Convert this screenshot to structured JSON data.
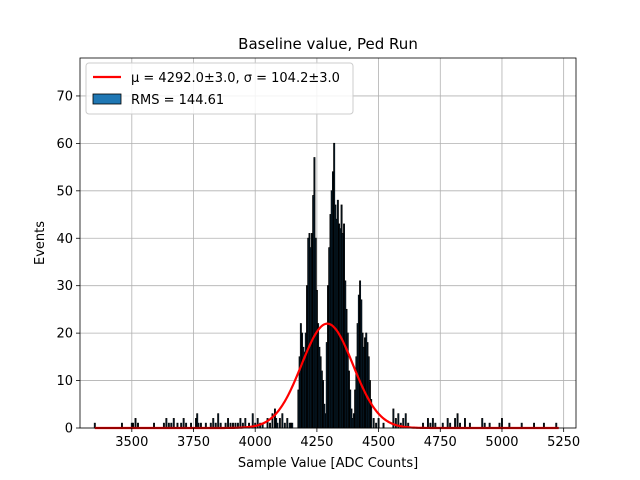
{
  "chart_data": {
    "type": "bar",
    "title": "Baseline value, Ped Run",
    "xlabel": "Sample Value [ADC Counts]",
    "ylabel": "Events",
    "xlim": [
      3290,
      5300
    ],
    "ylim": [
      0,
      78
    ],
    "xticks": [
      3500,
      3750,
      4000,
      4250,
      4500,
      4750,
      5000,
      5250
    ],
    "yticks": [
      0,
      10,
      20,
      30,
      40,
      50,
      60,
      70
    ],
    "grid": true,
    "legend_position": "upper-left",
    "legend": [
      {
        "label": "μ = 4292.0±3.0, σ = 104.2±3.0",
        "kind": "line",
        "color": "#ff0000"
      },
      {
        "label": "RMS = 144.61",
        "kind": "patch",
        "color": "#1f77b4"
      }
    ],
    "fit": {
      "mu": 4292.0,
      "sigma": 104.2,
      "amplitude": 22,
      "x_range": [
        3350,
        5230
      ],
      "color": "#ff0000"
    },
    "histogram": {
      "bar_color": "#1f77b4",
      "edge_color": "#000000",
      "bins": [
        {
          "x": 3350,
          "count": 1
        },
        {
          "x": 3460,
          "count": 1
        },
        {
          "x": 3500,
          "count": 1
        },
        {
          "x": 3505,
          "count": 1
        },
        {
          "x": 3515,
          "count": 2
        },
        {
          "x": 3525,
          "count": 1
        },
        {
          "x": 3590,
          "count": 1
        },
        {
          "x": 3630,
          "count": 1
        },
        {
          "x": 3640,
          "count": 2
        },
        {
          "x": 3650,
          "count": 1
        },
        {
          "x": 3660,
          "count": 1
        },
        {
          "x": 3670,
          "count": 2
        },
        {
          "x": 3685,
          "count": 1
        },
        {
          "x": 3700,
          "count": 1
        },
        {
          "x": 3710,
          "count": 2
        },
        {
          "x": 3720,
          "count": 1
        },
        {
          "x": 3740,
          "count": 1
        },
        {
          "x": 3760,
          "count": 2
        },
        {
          "x": 3765,
          "count": 3
        },
        {
          "x": 3770,
          "count": 1
        },
        {
          "x": 3780,
          "count": 1
        },
        {
          "x": 3800,
          "count": 1
        },
        {
          "x": 3820,
          "count": 1
        },
        {
          "x": 3830,
          "count": 2
        },
        {
          "x": 3840,
          "count": 1
        },
        {
          "x": 3850,
          "count": 3
        },
        {
          "x": 3860,
          "count": 1
        },
        {
          "x": 3880,
          "count": 1
        },
        {
          "x": 3890,
          "count": 2
        },
        {
          "x": 3900,
          "count": 1
        },
        {
          "x": 3910,
          "count": 1
        },
        {
          "x": 3920,
          "count": 1
        },
        {
          "x": 3930,
          "count": 1
        },
        {
          "x": 3940,
          "count": 2
        },
        {
          "x": 3950,
          "count": 1
        },
        {
          "x": 3960,
          "count": 2
        },
        {
          "x": 3975,
          "count": 1
        },
        {
          "x": 3990,
          "count": 3
        },
        {
          "x": 4000,
          "count": 1
        },
        {
          "x": 4010,
          "count": 2
        },
        {
          "x": 4020,
          "count": 1
        },
        {
          "x": 4030,
          "count": 1
        },
        {
          "x": 4050,
          "count": 2
        },
        {
          "x": 4060,
          "count": 1
        },
        {
          "x": 4070,
          "count": 3
        },
        {
          "x": 4080,
          "count": 4
        },
        {
          "x": 4085,
          "count": 2
        },
        {
          "x": 4090,
          "count": 1
        },
        {
          "x": 4100,
          "count": 2
        },
        {
          "x": 4110,
          "count": 3
        },
        {
          "x": 4120,
          "count": 1
        },
        {
          "x": 4130,
          "count": 2
        },
        {
          "x": 4140,
          "count": 1
        },
        {
          "x": 4145,
          "count": 1
        },
        {
          "x": 4150,
          "count": 1
        },
        {
          "x": 4175,
          "count": 8
        },
        {
          "x": 4180,
          "count": 15
        },
        {
          "x": 4185,
          "count": 22
        },
        {
          "x": 4190,
          "count": 20
        },
        {
          "x": 4195,
          "count": 17
        },
        {
          "x": 4200,
          "count": 16
        },
        {
          "x": 4205,
          "count": 20
        },
        {
          "x": 4210,
          "count": 30
        },
        {
          "x": 4215,
          "count": 40
        },
        {
          "x": 4220,
          "count": 41
        },
        {
          "x": 4225,
          "count": 38
        },
        {
          "x": 4230,
          "count": 41
        },
        {
          "x": 4235,
          "count": 49
        },
        {
          "x": 4240,
          "count": 57
        },
        {
          "x": 4245,
          "count": 40
        },
        {
          "x": 4250,
          "count": 29
        },
        {
          "x": 4255,
          "count": 22
        },
        {
          "x": 4260,
          "count": 17
        },
        {
          "x": 4265,
          "count": 15
        },
        {
          "x": 4270,
          "count": 12
        },
        {
          "x": 4275,
          "count": 10
        },
        {
          "x": 4280,
          "count": 5
        },
        {
          "x": 4285,
          "count": 3
        },
        {
          "x": 4290,
          "count": 18
        },
        {
          "x": 4295,
          "count": 30
        },
        {
          "x": 4300,
          "count": 38
        },
        {
          "x": 4305,
          "count": 45
        },
        {
          "x": 4310,
          "count": 50
        },
        {
          "x": 4315,
          "count": 54
        },
        {
          "x": 4320,
          "count": 60
        },
        {
          "x": 4325,
          "count": 47
        },
        {
          "x": 4330,
          "count": 44
        },
        {
          "x": 4335,
          "count": 48
        },
        {
          "x": 4340,
          "count": 43
        },
        {
          "x": 4345,
          "count": 42
        },
        {
          "x": 4350,
          "count": 47
        },
        {
          "x": 4355,
          "count": 41
        },
        {
          "x": 4360,
          "count": 43
        },
        {
          "x": 4365,
          "count": 31
        },
        {
          "x": 4370,
          "count": 25
        },
        {
          "x": 4375,
          "count": 20
        },
        {
          "x": 4380,
          "count": 12
        },
        {
          "x": 4385,
          "count": 8
        },
        {
          "x": 4390,
          "count": 4
        },
        {
          "x": 4395,
          "count": 2
        },
        {
          "x": 4400,
          "count": 3
        },
        {
          "x": 4405,
          "count": 8
        },
        {
          "x": 4410,
          "count": 15
        },
        {
          "x": 4415,
          "count": 22
        },
        {
          "x": 4420,
          "count": 28
        },
        {
          "x": 4425,
          "count": 31
        },
        {
          "x": 4430,
          "count": 27
        },
        {
          "x": 4435,
          "count": 20
        },
        {
          "x": 4440,
          "count": 17
        },
        {
          "x": 4445,
          "count": 19
        },
        {
          "x": 4450,
          "count": 20
        },
        {
          "x": 4455,
          "count": 18
        },
        {
          "x": 4460,
          "count": 15
        },
        {
          "x": 4465,
          "count": 10
        },
        {
          "x": 4470,
          "count": 6
        },
        {
          "x": 4480,
          "count": 2
        },
        {
          "x": 4490,
          "count": 1
        },
        {
          "x": 4500,
          "count": 2
        },
        {
          "x": 4520,
          "count": 1
        },
        {
          "x": 4560,
          "count": 4
        },
        {
          "x": 4570,
          "count": 2
        },
        {
          "x": 4580,
          "count": 3
        },
        {
          "x": 4590,
          "count": 1
        },
        {
          "x": 4600,
          "count": 2
        },
        {
          "x": 4610,
          "count": 3
        },
        {
          "x": 4620,
          "count": 1
        },
        {
          "x": 4680,
          "count": 1
        },
        {
          "x": 4700,
          "count": 2
        },
        {
          "x": 4710,
          "count": 1
        },
        {
          "x": 4720,
          "count": 2
        },
        {
          "x": 4730,
          "count": 1
        },
        {
          "x": 4760,
          "count": 1
        },
        {
          "x": 4780,
          "count": 2
        },
        {
          "x": 4790,
          "count": 1
        },
        {
          "x": 4810,
          "count": 2
        },
        {
          "x": 4820,
          "count": 3
        },
        {
          "x": 4830,
          "count": 1
        },
        {
          "x": 4850,
          "count": 2
        },
        {
          "x": 4870,
          "count": 1
        },
        {
          "x": 4920,
          "count": 2
        },
        {
          "x": 4930,
          "count": 1
        },
        {
          "x": 4950,
          "count": 1
        },
        {
          "x": 4990,
          "count": 1
        },
        {
          "x": 5000,
          "count": 2
        },
        {
          "x": 5030,
          "count": 1
        },
        {
          "x": 5080,
          "count": 1
        },
        {
          "x": 5130,
          "count": 1
        },
        {
          "x": 5170,
          "count": 1
        },
        {
          "x": 5220,
          "count": 1
        }
      ]
    }
  }
}
